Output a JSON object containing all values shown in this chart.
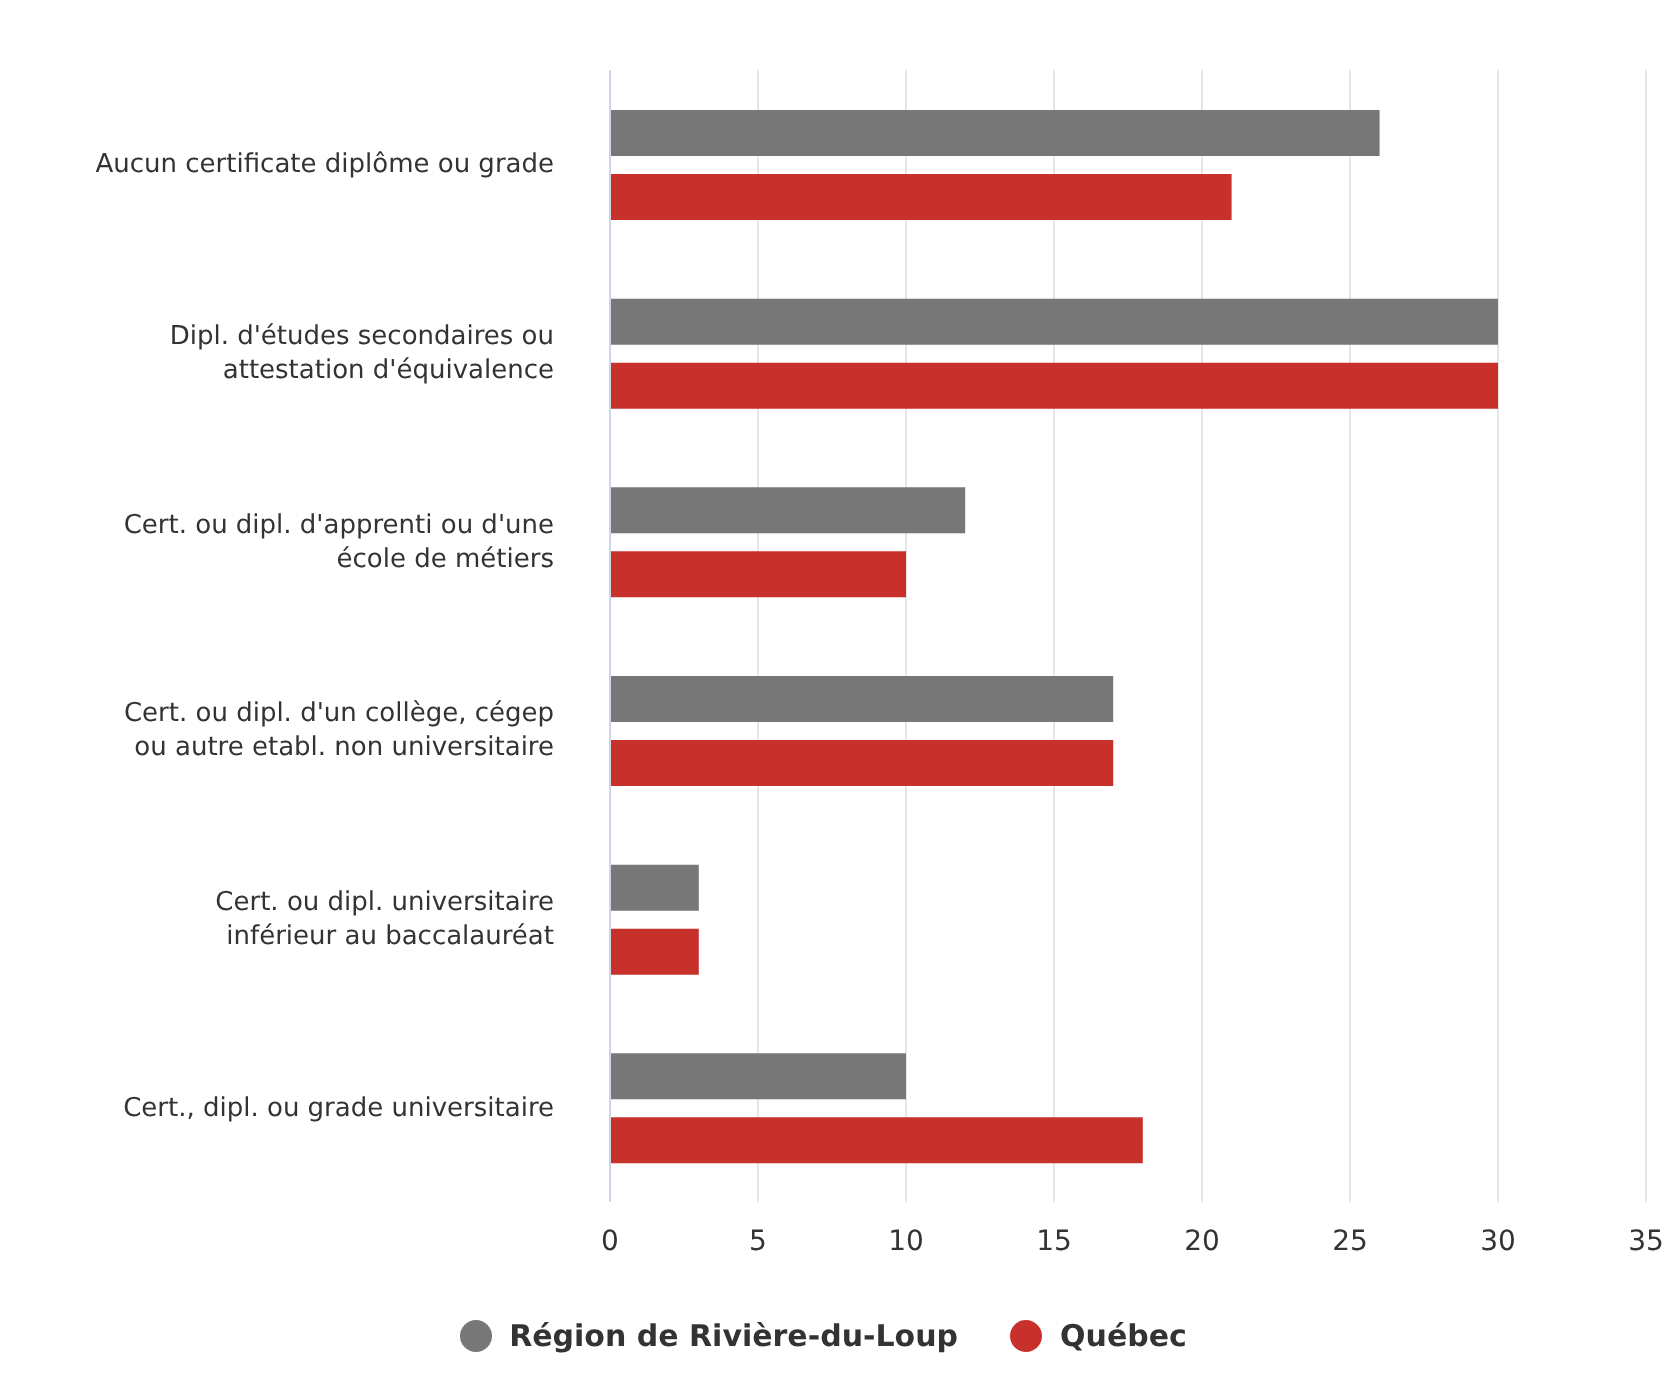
{
  "chart_data": {
    "type": "bar",
    "orientation": "horizontal",
    "categories": [
      "Aucun certificate diplôme ou grade",
      "Dipl. d'études secondaires ou attestation d'équivalence",
      "Cert. ou dipl. d'apprenti ou d'une école de métiers",
      "Cert. ou dipl. d'un collège, cégep ou autre etabl. non universitaire",
      "Cert. ou dipl. universitaire inférieur au baccalauréat",
      "Cert., dipl. ou grade universitaire"
    ],
    "series": [
      {
        "name": "Région de Rivière-du-Loup",
        "color": "#777777",
        "values": [
          26,
          30,
          12,
          17,
          3,
          10
        ]
      },
      {
        "name": "Québec",
        "color": "#c8302c",
        "values": [
          21,
          30,
          10,
          17,
          3,
          18
        ]
      }
    ],
    "xlim": [
      0,
      35
    ],
    "xticks": [
      0,
      5,
      10,
      15,
      20,
      25,
      30,
      35
    ],
    "grid": "x",
    "legend": "bottom"
  }
}
